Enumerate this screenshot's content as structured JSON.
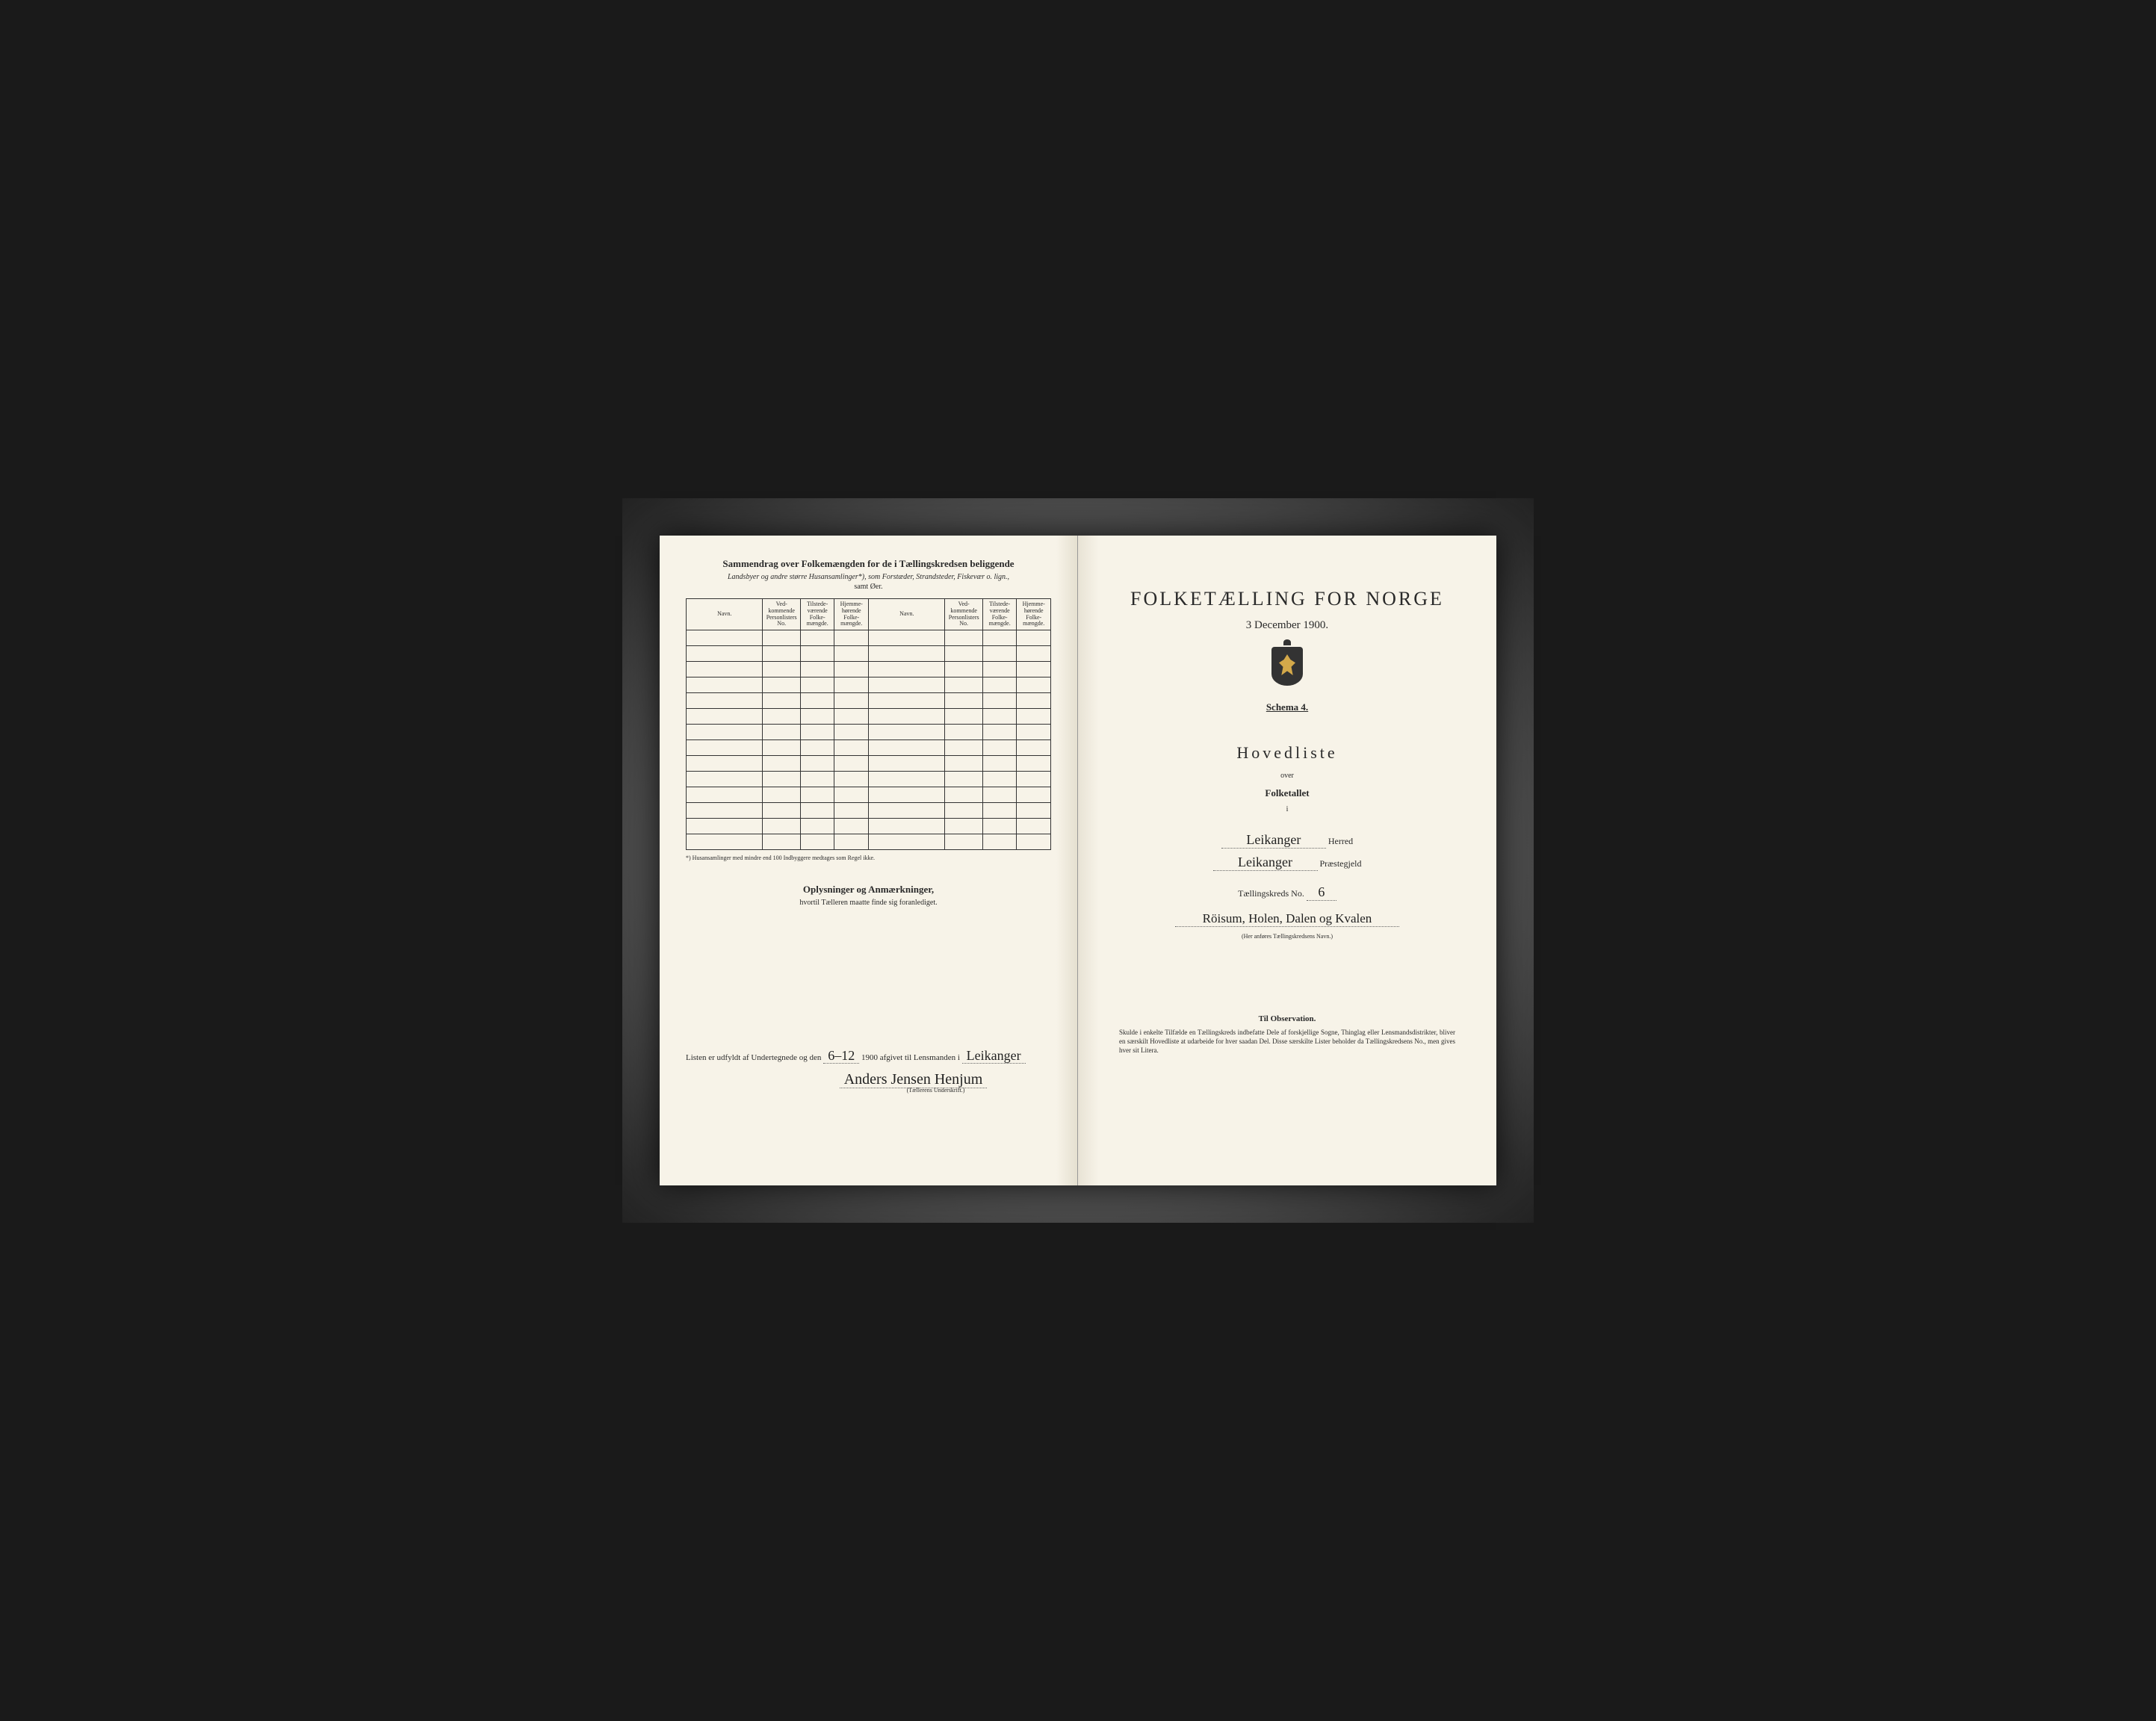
{
  "colors": {
    "paper": "#f7f3e8",
    "ink": "#2a2a2a",
    "frame_dark": "#1a1a1a",
    "crest_gold": "#d4a94a"
  },
  "left": {
    "summary_title": "Sammendrag over Folkemængden for de i Tællingskredsen beliggende",
    "summary_sub": "Landsbyer og andre større Husansamlinger*), som Forstæder, Strandsteder, Fiskevær o. lign.,",
    "summary_sub2": "samt Øer.",
    "headers": {
      "navn": "Navn.",
      "vedkommende": "Ved-kommende Personlisters No.",
      "tilstede": "Tilstede-værende Folke-mængde.",
      "hjemme": "Hjemme-hørende Folke-mængde."
    },
    "footnote": "*) Husansamlinger med mindre end 100 Indbyggere medtages som Regel ikke.",
    "oplys_title": "Oplysninger og Anmærkninger,",
    "oplys_sub": "hvortil Tælleren maatte finde sig foranlediget.",
    "listen_pre": "Listen er udfyldt af Undertegnede og den",
    "date_hand": "6–12",
    "year": "1900",
    "afgivet": "afgivet til Lensmanden i",
    "lensmand_hand": "Leikanger",
    "signature": "Anders Jensen Henjum",
    "underskrift_label": "(Tællerens Underskrift.)"
  },
  "right": {
    "main_title": "FOLKETÆLLING FOR NORGE",
    "date": "3 December 1900.",
    "schema": "Schema 4.",
    "hovedliste": "Hovedliste",
    "over": "over",
    "folketallet": "Folketallet",
    "i": "i",
    "herred_hand": "Leikanger",
    "herred_label": "Herred",
    "prestegjeld_hand": "Leikanger",
    "prestegjeld_label": "Præstegjeld",
    "kreds_label": "Tællingskreds No.",
    "kreds_no": "6",
    "kreds_name_hand": "Röisum, Holen, Dalen og Kvalen",
    "kreds_name_note": "(Her anføres Tællingskredsens Navn.)",
    "obs_title": "Til Observation.",
    "obs_text": "Skulde i enkelte Tilfælde en Tællingskreds indbefatte Dele af forskjellige Sogne, Thinglag eller Lensmandsdistrikter, bliver en særskilt Hovedliste at udarbeide for hver saadan Del. Disse særskilte Lister beholder da Tællingskredsens No., men gives hver sit Litera."
  },
  "table": {
    "rows": 14,
    "cols_per_half": 4
  }
}
